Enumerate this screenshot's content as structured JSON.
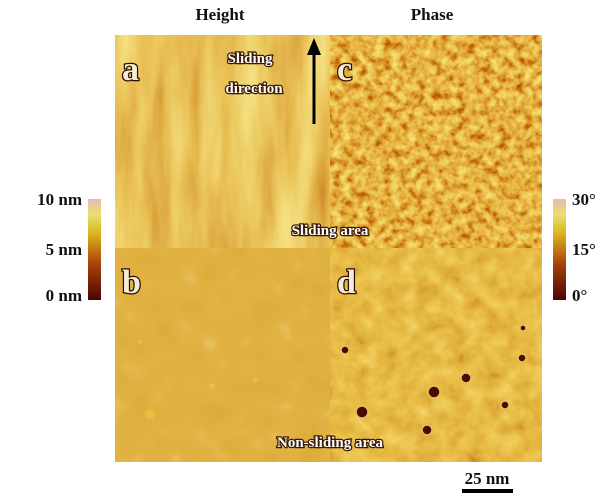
{
  "headers": [
    "Height",
    "Phase"
  ],
  "panels": [
    "a",
    "b",
    "c",
    "d"
  ],
  "annotations": {
    "sliding_direction": [
      "Sliding",
      "direction"
    ],
    "sliding_area": "Sliding area",
    "non_sliding_area": "Non-sliding area"
  },
  "height_scale": [
    "10 nm",
    "5 nm",
    "0 nm"
  ],
  "phase_scale": [
    "30°",
    "15°",
    "0°"
  ],
  "scale_bar": "25 nm"
}
